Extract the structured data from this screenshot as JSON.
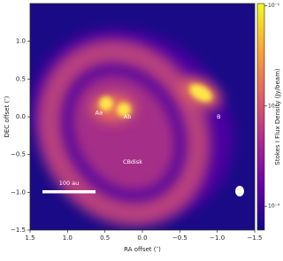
{
  "chart_data": {
    "type": "image",
    "xlabel": "RA offset (″)",
    "ylabel": "DEC offset (″)",
    "xlim": [
      1.5,
      -1.5
    ],
    "ylim": [
      -1.5,
      1.5
    ],
    "xticks": [
      {
        "value": 1.5,
        "label": "1.5"
      },
      {
        "value": 1,
        "label": "1.0"
      },
      {
        "value": 0.5,
        "label": "0.5"
      },
      {
        "value": 0,
        "label": "0.0"
      },
      {
        "value": -0.5,
        "label": "−0.5"
      },
      {
        "value": -1,
        "label": "−1.0"
      },
      {
        "value": -1.5,
        "label": "−1.5"
      }
    ],
    "yticks": [
      {
        "value": 1,
        "label": "1.0"
      },
      {
        "value": 0.5,
        "label": "0.5"
      },
      {
        "value": 0,
        "label": "0.0"
      },
      {
        "value": -0.5,
        "label": "−0.5"
      },
      {
        "value": -1,
        "label": "−1.0"
      },
      {
        "value": -1.5,
        "label": "−1.5"
      }
    ],
    "colorbar": {
      "label": "Stokes I Flux Density (Jy/beam)",
      "log": true,
      "lim": [
        0.00058,
        0.105
      ],
      "ticks": [
        {
          "value": 0.001,
          "label": "10⁻³"
        },
        {
          "value": 0.01,
          "label": "10⁻²"
        },
        {
          "value": 0.1,
          "label": "10⁻¹"
        }
      ],
      "colors": [
        "#0d0887",
        "#6a00a8",
        "#b12a90",
        "#e16462",
        "#fca636",
        "#f0f921"
      ]
    },
    "annotations": [
      {
        "text": "Aa",
        "x": 0.58,
        "y": 0.05
      },
      {
        "text": "Ab",
        "x": 0.2,
        "y": 0.0
      },
      {
        "text": "B",
        "x": -1.02,
        "y": 0.0
      },
      {
        "text": "CBdisk",
        "x": 0.13,
        "y": -0.6
      }
    ],
    "scale_bar": {
      "text": "100 au"
    }
  }
}
